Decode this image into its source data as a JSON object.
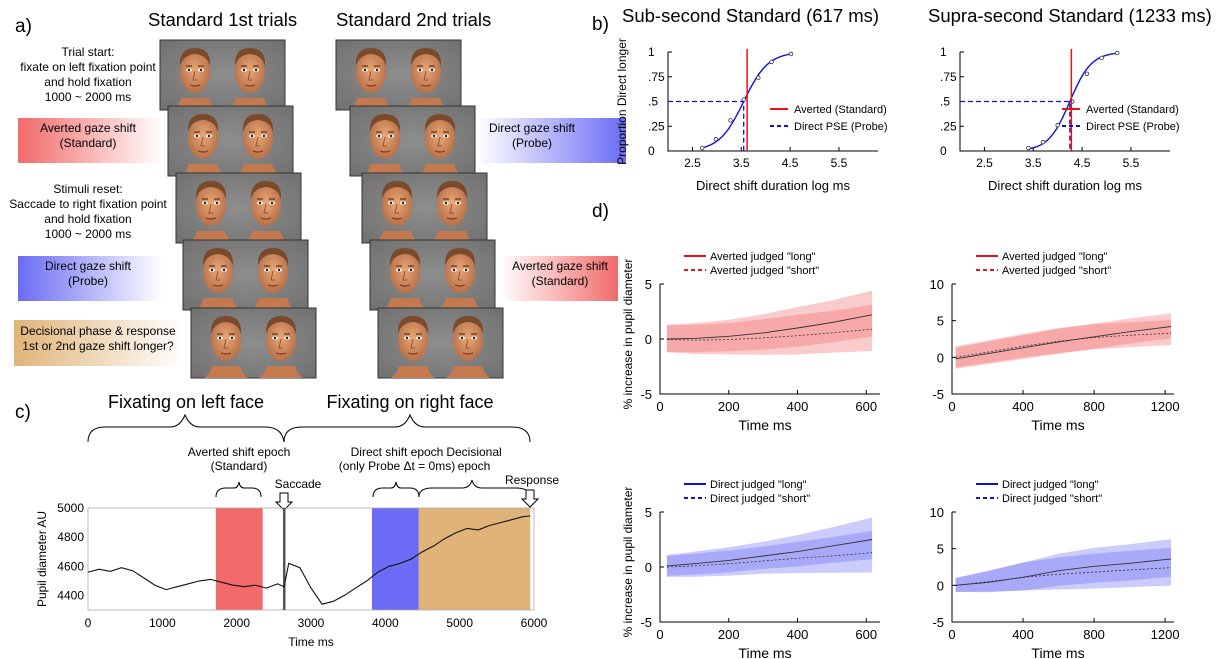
{
  "panel_letters": {
    "a": "a)",
    "b": "b)",
    "c": "c)",
    "d": "d)"
  },
  "panel_a": {
    "col_titles": [
      "Standard 1st trials",
      "Standard 2nd trials"
    ],
    "left_labels": [
      {
        "lines": [
          "Trial start:",
          "fixate on left fixation point",
          "and hold fixation",
          "1000 ~ 2000 ms"
        ],
        "color": "#ffffff"
      },
      {
        "lines": [
          "Averted gaze shift",
          "(Standard)"
        ],
        "color": "#f26a6a"
      },
      {
        "lines": [
          "Stimuli reset:",
          "Saccade to right fixation point",
          "and hold fixation",
          "1000 ~ 2000 ms"
        ],
        "color": "#ffffff"
      },
      {
        "lines": [
          "Direct gaze shift",
          "(Probe)"
        ],
        "color": "#6b6bf5"
      },
      {
        "lines": [
          "Decisional phase & response",
          "1st or 2nd gaze shift longer?"
        ],
        "color": "#e0b478"
      }
    ],
    "right_labels": [
      {
        "lines": [
          "Direct gaze shift",
          "(Probe)"
        ],
        "color": "#6b6bf5"
      },
      {
        "lines": [
          "Averted gaze shift",
          "(Standard)"
        ],
        "color": "#f26a6a"
      }
    ]
  },
  "panel_b": {
    "charts": [
      {
        "title": "Sub-second Standard (617 ms)",
        "ylabel": "Proportion Direct longer",
        "xlabel": "Direct shift duration log ms",
        "yticks": [
          "0",
          ".25",
          ".5",
          ".75",
          "1"
        ],
        "xticks": [
          "2.5",
          "3.5",
          "4.5",
          "5.5"
        ],
        "legend": [
          "Averted (Standard)",
          "Direct PSE (Probe)"
        ]
      },
      {
        "title": "Supra-second Standard (1233 ms)",
        "ylabel": "",
        "xlabel": "Direct shift duration log ms",
        "yticks": [
          "0",
          ".25",
          ".5",
          ".75",
          "1"
        ],
        "xticks": [
          "2.5",
          "3.5",
          "4.5",
          "5.5"
        ],
        "legend": [
          "Averted (Standard)",
          "Direct PSE (Probe)"
        ]
      }
    ]
  },
  "panel_c": {
    "brace_labels": [
      "Fixating on left face",
      "Fixating on right face"
    ],
    "epoch_labels": [
      {
        "lines": [
          "Averted shift epoch",
          "(Standard)"
        ]
      },
      {
        "lines": [
          "Direct shift epoch",
          "(only Probe Δt = 0ms)"
        ]
      },
      {
        "lines": [
          "Decisional",
          "epoch"
        ]
      }
    ],
    "markers": [
      "Saccade",
      "Response"
    ],
    "ylabel": "Pupil diameter AU",
    "xlabel": "Time ms",
    "yticks": [
      "4400",
      "4600",
      "4800",
      "5000"
    ],
    "xticks": [
      "0",
      "1000",
      "2000",
      "3000",
      "4000",
      "5000",
      "6000"
    ]
  },
  "panel_d": {
    "ylabel": "% increase in pupil diameter",
    "xlabel": "Time ms",
    "charts": [
      {
        "legend": [
          "Averted judged \"long\"",
          "Averted judged \"short\""
        ],
        "yticks": [
          "-5",
          "0",
          "5"
        ],
        "xticks": [
          "0",
          "200",
          "400",
          "600"
        ]
      },
      {
        "legend": [
          "Averted judged \"long\"",
          "Averted judged \"short\""
        ],
        "yticks": [
          "-5",
          "0",
          "5",
          "10"
        ],
        "xticks": [
          "0",
          "400",
          "800",
          "1200"
        ]
      },
      {
        "legend": [
          "Direct judged \"long\"",
          "Direct judged \"short\""
        ],
        "yticks": [
          "-5",
          "0",
          "5"
        ],
        "xticks": [
          "0",
          "200",
          "400",
          "600"
        ]
      },
      {
        "legend": [
          "Direct judged \"long\"",
          "Direct judged \"short\""
        ],
        "yticks": [
          "-5",
          "0",
          "5",
          "10"
        ],
        "xticks": [
          "0",
          "400",
          "800",
          "1200"
        ]
      }
    ]
  },
  "colors": {
    "averted": "#f26a6a",
    "direct": "#6b6bf5",
    "decision": "#e0b478",
    "red_line": "#ee1111",
    "blue_line": "#1010dd"
  },
  "chart_data": [
    {
      "type": "line",
      "title": "Sub-second Standard (617 ms)",
      "xlabel": "Direct shift duration log ms",
      "ylabel": "Proportion Direct longer",
      "xlim": [
        2.0,
        6.3
      ],
      "ylim": [
        0,
        1
      ],
      "series": [
        {
          "name": "Averted (Standard)",
          "x": [
            3.62,
            3.62
          ],
          "y": [
            0,
            1
          ]
        },
        {
          "name": "Direct PSE (Probe)",
          "x": [
            3.55,
            3.55
          ],
          "y": [
            0,
            0.5
          ]
        }
      ],
      "observed": {
        "x": [
          2.7,
          2.98,
          3.28,
          3.55,
          3.85,
          4.12,
          4.52
        ],
        "y": [
          0.03,
          0.12,
          0.31,
          0.52,
          0.74,
          0.9,
          0.98
        ]
      },
      "legend_position": "right",
      "grid": false
    },
    {
      "type": "line",
      "title": "Supra-second Standard (1233 ms)",
      "xlabel": "Direct shift duration log ms",
      "ylabel": "",
      "xlim": [
        2.0,
        6.3
      ],
      "ylim": [
        0,
        1
      ],
      "series": [
        {
          "name": "Averted (Standard)",
          "x": [
            4.28,
            4.28
          ],
          "y": [
            0,
            1
          ]
        },
        {
          "name": "Direct PSE (Probe)",
          "x": [
            4.25,
            4.25
          ],
          "y": [
            0,
            0.5
          ]
        }
      ],
      "observed": {
        "x": [
          3.4,
          3.7,
          4.0,
          4.3,
          4.6,
          4.9,
          5.22
        ],
        "y": [
          0.03,
          0.09,
          0.26,
          0.5,
          0.78,
          0.94,
          0.99
        ]
      },
      "legend_position": "right",
      "grid": false
    },
    {
      "type": "line",
      "xlabel": "Time ms",
      "ylabel": "Pupil diameter AU",
      "xlim": [
        0,
        6000
      ],
      "ylim": [
        4300,
        5000
      ],
      "epochs": [
        {
          "label": "Averted shift epoch",
          "x": [
            1720,
            2350
          ]
        },
        {
          "label": "Direct shift epoch",
          "x": [
            3820,
            4450
          ]
        },
        {
          "label": "Decisional epoch",
          "x": [
            4450,
            5950
          ]
        }
      ],
      "saccade_x": 2640,
      "series": [
        {
          "x": [
            0,
            150,
            300,
            450,
            600,
            750,
            900,
            1050,
            1200,
            1350,
            1500,
            1650,
            1800,
            1950,
            2100,
            2250,
            2400,
            2550,
            2640,
            2700,
            2850,
            3000,
            3150,
            3300,
            3450,
            3600,
            3750,
            3900,
            4050,
            4200,
            4350,
            4500,
            4650,
            4800,
            4950,
            5100,
            5250,
            5400,
            5550,
            5700,
            5850,
            5950
          ],
          "y": [
            4560,
            4580,
            4565,
            4590,
            4570,
            4520,
            4470,
            4440,
            4460,
            4480,
            4500,
            4510,
            4490,
            4470,
            4460,
            4470,
            4450,
            4480,
            4460,
            4620,
            4590,
            4450,
            4340,
            4360,
            4400,
            4450,
            4500,
            4560,
            4600,
            4620,
            4650,
            4700,
            4740,
            4790,
            4830,
            4860,
            4850,
            4880,
            4900,
            4920,
            4940,
            4945
          ]
        }
      ]
    },
    {
      "type": "area",
      "xlabel": "Time ms",
      "ylabel": "% increase in pupil diameter",
      "xlim": [
        0,
        640
      ],
      "ylim": [
        -5,
        5
      ],
      "x": [
        20,
        100,
        200,
        300,
        400,
        500,
        617
      ],
      "series": [
        {
          "name": "Averted judged \"long\"",
          "values": [
            0,
            0.05,
            0.25,
            0.55,
            1.0,
            1.5,
            2.2
          ],
          "band": [
            1.3,
            1.4,
            1.5,
            1.7,
            1.9,
            2.0,
            2.2
          ]
        },
        {
          "name": "Averted judged \"short\"",
          "values": [
            -0.05,
            -0.1,
            -0.05,
            0.1,
            0.3,
            0.55,
            0.9
          ]
        }
      ]
    },
    {
      "type": "area",
      "xlabel": "Time ms",
      "ylabel": "",
      "xlim": [
        0,
        1250
      ],
      "ylim": [
        -5,
        10
      ],
      "x": [
        20,
        200,
        400,
        600,
        800,
        1000,
        1233
      ],
      "series": [
        {
          "name": "Averted judged \"long\"",
          "values": [
            -0.2,
            0.5,
            1.3,
            2.1,
            2.8,
            3.5,
            4.2
          ],
          "band": [
            1.5,
            1.6,
            1.7,
            1.8,
            1.8,
            1.8,
            1.8
          ]
        },
        {
          "name": "Averted judged \"short\"",
          "values": [
            0,
            0.7,
            1.5,
            2.2,
            2.7,
            3.0,
            3.3
          ]
        }
      ]
    },
    {
      "type": "area",
      "xlabel": "Time ms",
      "ylabel": "% increase in pupil diameter",
      "xlim": [
        0,
        640
      ],
      "ylim": [
        -5,
        5
      ],
      "x": [
        20,
        100,
        200,
        300,
        400,
        500,
        617
      ],
      "series": [
        {
          "name": "Direct judged \"long\"",
          "values": [
            0.1,
            0.3,
            0.6,
            1.0,
            1.4,
            1.9,
            2.5
          ],
          "band": [
            1.0,
            1.1,
            1.2,
            1.3,
            1.5,
            1.7,
            2.0
          ]
        },
        {
          "name": "Direct judged \"short\"",
          "values": [
            0,
            0.1,
            0.3,
            0.55,
            0.8,
            1.0,
            1.3
          ]
        }
      ]
    },
    {
      "type": "area",
      "xlabel": "Time ms",
      "ylabel": "",
      "xlim": [
        0,
        1250
      ],
      "ylim": [
        -5,
        10
      ],
      "x": [
        20,
        200,
        400,
        600,
        800,
        1000,
        1233
      ],
      "series": [
        {
          "name": "Direct judged \"long\"",
          "values": [
            0,
            0.4,
            1.1,
            2.0,
            2.6,
            3.0,
            3.6
          ],
          "band": [
            1.0,
            1.5,
            2.0,
            2.3,
            2.5,
            2.6,
            2.7
          ]
        },
        {
          "name": "Direct judged \"short\"",
          "values": [
            0,
            0.5,
            1.1,
            1.5,
            1.8,
            2.1,
            2.4
          ]
        }
      ]
    }
  ]
}
